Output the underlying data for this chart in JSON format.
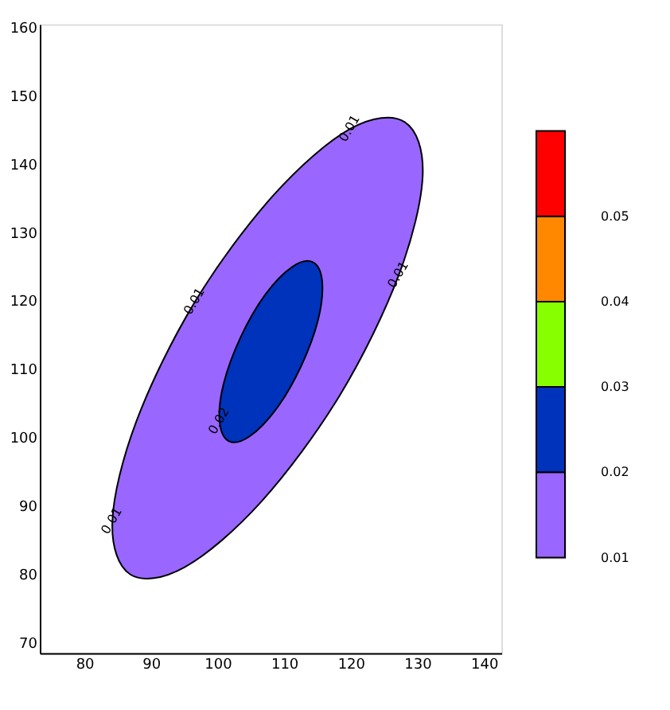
{
  "chart_data": {
    "type": "area",
    "series": [
      {
        "color": "#9966ff",
        "x": [
          128.1,
          119.9,
          108.4,
          96.6,
          87.8,
          84.2,
          86.9,
          95.1,
          106.6,
          118.4,
          127.2,
          130.8
        ],
        "values": [
          146.1,
          145.1,
          135.4,
          119.8,
          102.3,
          87.7,
          79.9,
          81.0,
          90.6,
          106.2,
          123.7,
          138.3
        ]
      },
      {
        "color": "#0033bb",
        "x": [
          114.3,
          111.2,
          107.2,
          103.5,
          100.9,
          100.3,
          101.7,
          104.8,
          108.8,
          112.5,
          115.1,
          115.7
        ],
        "values": [
          125.6,
          124.9,
          120.9,
          114.7,
          107.8,
          102.3,
          99.4,
          100.1,
          104.1,
          110.3,
          117.2,
          122.8
        ]
      }
    ],
    "xlim": [
      73.3,
      142.6
    ],
    "xticks": [
      80,
      90,
      100,
      110,
      120,
      130,
      140
    ],
    "ylim": [
      68.4,
      160.4
    ],
    "yticks": [
      70,
      80,
      90,
      100,
      110,
      120,
      130,
      140,
      150,
      160
    ],
    "grid": false,
    "marker": "none",
    "line_style": "solid",
    "annotations": [
      {
        "text": "0.01",
        "x": 119.9,
        "y": 145.1
      },
      {
        "text": "0.01",
        "x": 96.6,
        "y": 119.8
      },
      {
        "text": "0.01",
        "x": 127.2,
        "y": 123.7
      },
      {
        "text": "0.01",
        "x": 84.2,
        "y": 87.7
      },
      {
        "text": "0.02",
        "x": 100.3,
        "y": 102.3
      }
    ],
    "clim": [
      0.01,
      0.06
    ],
    "cticks": [
      0.01,
      0.02,
      0.03,
      0.04,
      0.05
    ],
    "colors": [
      "#9966ff",
      "#0033bb",
      "#88ff00",
      "#ff8800",
      "#ff0000"
    ]
  }
}
